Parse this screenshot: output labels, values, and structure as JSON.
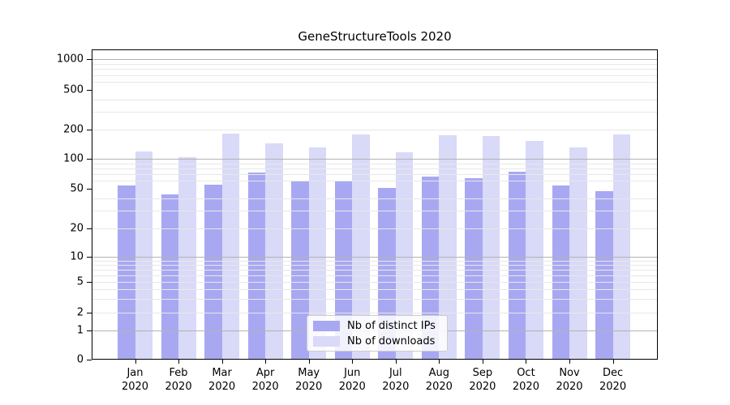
{
  "chart_data": {
    "type": "bar",
    "title": "GeneStructureTools 2020",
    "categories": [
      "Jan",
      "Feb",
      "Mar",
      "Apr",
      "May",
      "Jun",
      "Jul",
      "Aug",
      "Sep",
      "Oct",
      "Nov",
      "Dec"
    ],
    "category_year": "2020",
    "series": [
      {
        "name": "Nb of distinct IPs",
        "color": "#a8a8f2",
        "values": [
          54,
          44,
          55,
          73,
          60,
          60,
          51,
          67,
          64,
          75,
          54,
          47
        ]
      },
      {
        "name": "Nb of downloads",
        "color": "#d9d9f8",
        "values": [
          120,
          105,
          180,
          143,
          131,
          177,
          117,
          173,
          170,
          153,
          131,
          178
        ]
      }
    ],
    "xlabel": "",
    "ylabel": "",
    "y_scale": "symlog",
    "y_ticks": [
      0,
      1,
      2,
      5,
      10,
      20,
      50,
      100,
      200,
      500,
      1000
    ],
    "major_gridline_values": [
      1,
      10,
      100,
      1000
    ],
    "minor_gridline_values": [
      2,
      3,
      4,
      5,
      6,
      7,
      8,
      9,
      20,
      30,
      40,
      60,
      70,
      80,
      90,
      200,
      300,
      400,
      600,
      700,
      800,
      900
    ],
    "ylim": [
      0,
      1000
    ],
    "grid": "on",
    "legend_position": "lower-center",
    "colors": {
      "major_grid": "#b2b2b2",
      "minor_grid": "#e8e8e8",
      "spine": "#000000",
      "text": "#000000",
      "background": "#ffffff"
    }
  }
}
